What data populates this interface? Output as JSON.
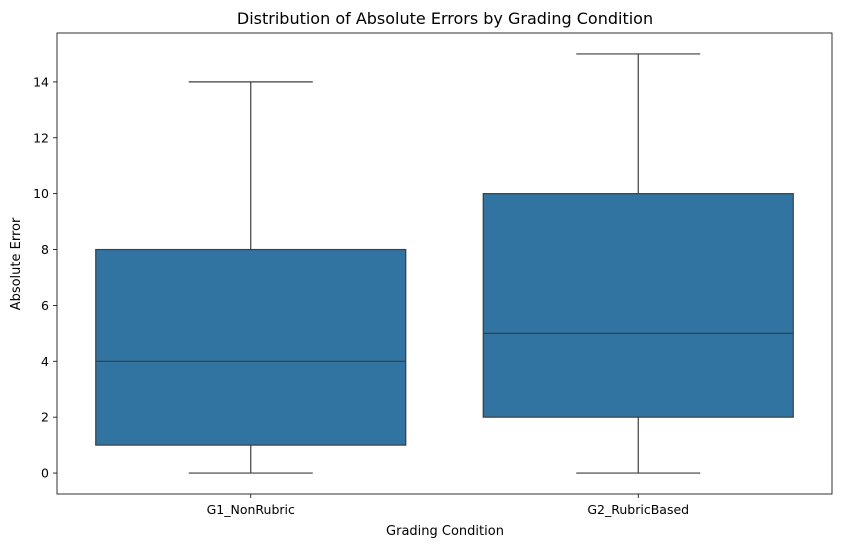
{
  "chart_data": {
    "type": "box",
    "title": "Distribution of Absolute Errors by Grading Condition",
    "xlabel": "Grading Condition",
    "ylabel": "Absolute Error",
    "ylim": [
      -0.75,
      15.75
    ],
    "yticks": [
      0,
      2,
      4,
      6,
      8,
      10,
      12,
      14
    ],
    "ytick_labels": [
      "0",
      "2",
      "4",
      "6",
      "8",
      "10",
      "12",
      "14"
    ],
    "grid": false,
    "legend": "none",
    "categories": [
      "G1_NonRubric",
      "G2_RubricBased"
    ],
    "boxes": [
      {
        "category": "G1_NonRubric",
        "whisker_low": 0,
        "q1": 1,
        "median": 4,
        "q3": 8,
        "whisker_high": 14
      },
      {
        "category": "G2_RubricBased",
        "whisker_low": 0,
        "q1": 2,
        "median": 5,
        "q3": 10,
        "whisker_high": 15
      }
    ],
    "colors": {
      "box_fill": "#3274a1",
      "line": "#3d3d3d",
      "frame": "#000000"
    }
  }
}
